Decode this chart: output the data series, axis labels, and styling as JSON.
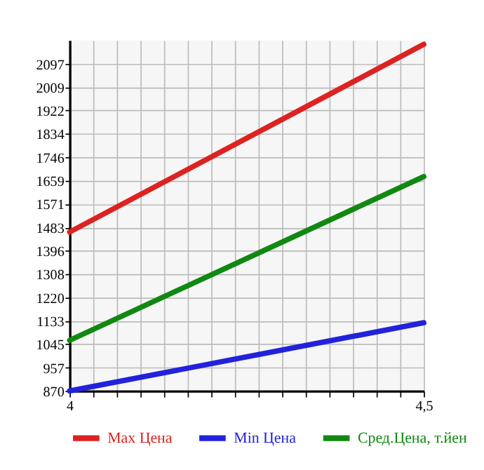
{
  "chart_data": {
    "type": "line",
    "x": [
      4,
      4.5
    ],
    "series": [
      {
        "name": "Max Цена",
        "color": "#dd2222",
        "values": [
          1466,
          2170
        ]
      },
      {
        "name": "Min Цена",
        "color": "#2222dd",
        "values": [
          870,
          1126
        ]
      },
      {
        "name": "Сред.Цена, т.йен",
        "color": "#118811",
        "values": [
          1060,
          1674
        ]
      }
    ],
    "xlim": [
      4,
      4.5
    ],
    "xticks": [
      4,
      {
        "value": 4.0333,
        "label": null
      },
      {
        "value": 4.0667,
        "label": null
      },
      {
        "value": 4.1,
        "label": null
      },
      {
        "value": 4.1333,
        "label": null
      },
      {
        "value": 4.1667,
        "label": null
      },
      {
        "value": 4.2,
        "label": null
      },
      {
        "value": 4.2333,
        "label": null
      },
      {
        "value": 4.2667,
        "label": null
      },
      {
        "value": 4.3,
        "label": null
      },
      {
        "value": 4.3333,
        "label": null
      },
      {
        "value": 4.3667,
        "label": null
      },
      {
        "value": 4.4,
        "label": null
      },
      {
        "value": 4.4333,
        "label": null
      },
      {
        "value": 4.4667,
        "label": null
      },
      {
        "value": 4.5,
        "label": "4,5"
      }
    ],
    "ylim": [
      870,
      2185
    ],
    "yticks": [
      870,
      957,
      1045,
      1133,
      1220,
      1308,
      1396,
      1483,
      1571,
      1659,
      1746,
      1834,
      1922,
      2009,
      2097
    ],
    "grid": true,
    "legend": "bottom",
    "marker": "none",
    "line_style": "solid"
  }
}
